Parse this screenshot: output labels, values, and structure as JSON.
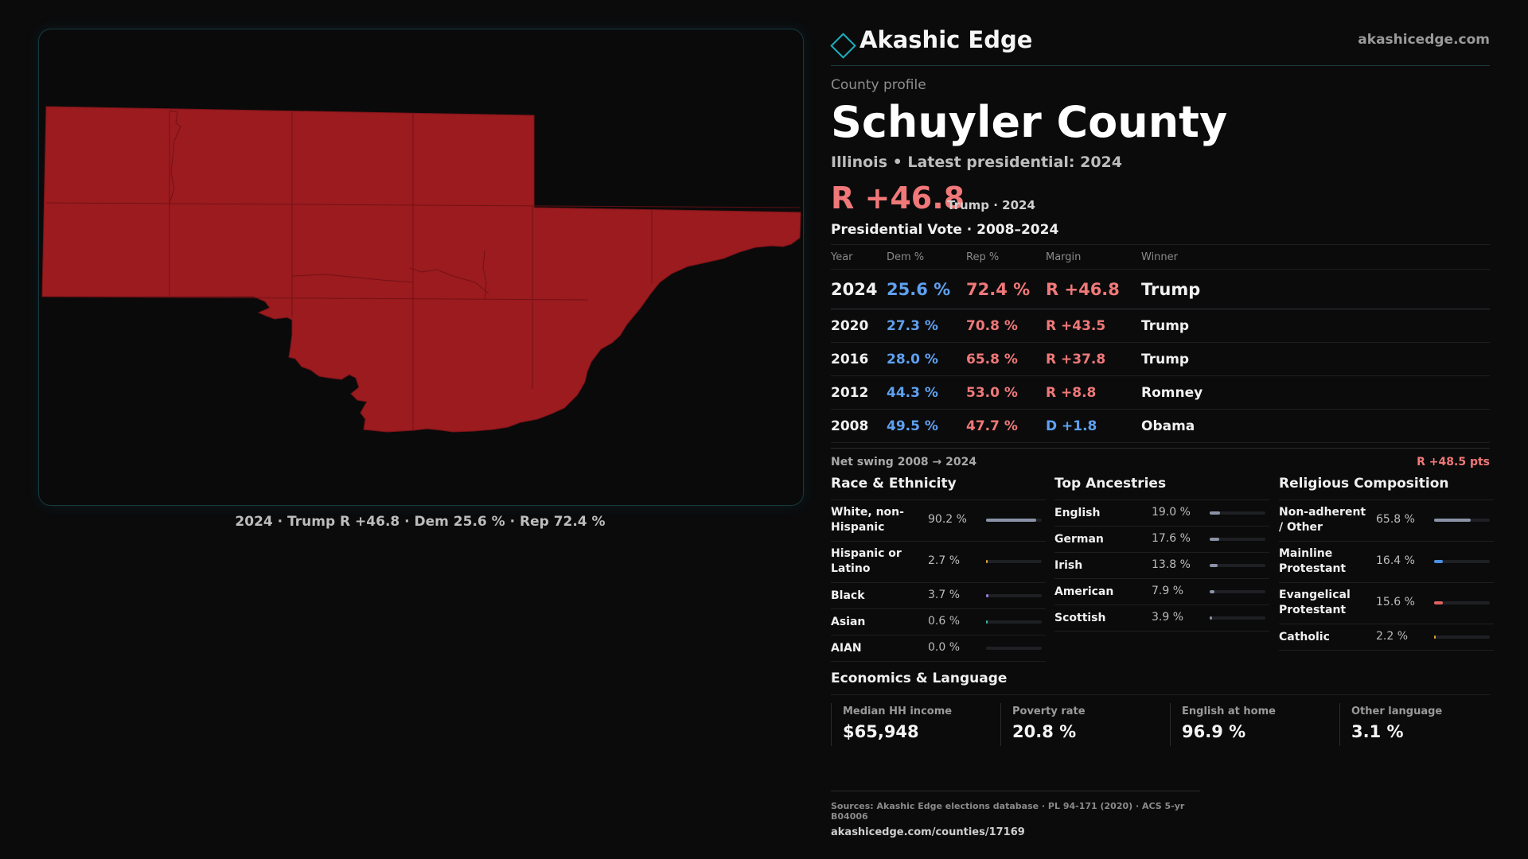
{
  "brand": {
    "name": "Akashic Edge",
    "url": "akashicedge.com"
  },
  "profile": {
    "eyebrow": "County profile",
    "county": "Schuyler County",
    "subtitle": "Illinois • Latest presidential: 2024",
    "headline_margin": "R +46.8",
    "headline_who": "Trump · 2024"
  },
  "map": {
    "caption": "2024 · Trump R +46.8 · Dem 25.6 % · Rep 72.4 %",
    "fill_color": "#9b1b1f",
    "border_color": "#17393f"
  },
  "vote": {
    "title": "Presidential Vote · 2008–2024",
    "columns": [
      "Year",
      "Dem %",
      "Rep %",
      "Margin",
      "Winner"
    ],
    "rows": [
      {
        "year": "2024",
        "dem": "25.6 %",
        "rep": "72.4 %",
        "margin": "R +46.8",
        "winner": "Trump"
      },
      {
        "year": "2020",
        "dem": "27.3 %",
        "rep": "70.8 %",
        "margin": "R +43.5",
        "winner": "Trump"
      },
      {
        "year": "2016",
        "dem": "28.0 %",
        "rep": "65.8 %",
        "margin": "R +37.8",
        "winner": "Trump"
      },
      {
        "year": "2012",
        "dem": "44.3 %",
        "rep": "53.0 %",
        "margin": "R +8.8",
        "winner": "Romney"
      },
      {
        "year": "2008",
        "dem": "49.5 %",
        "rep": "47.7 %",
        "margin": "D +1.8",
        "winner": "Obama"
      }
    ],
    "swing_label": "Net swing 2008 → 2024",
    "swing_value": "R +48.5 pts"
  },
  "race": {
    "title": "Race & Ethnicity",
    "items": [
      {
        "label": "White, non-Hispanic",
        "pct": "90.2 %",
        "value": 90.2,
        "color": "#8a93a6"
      },
      {
        "label": "Hispanic or Latino",
        "pct": "2.7 %",
        "value": 2.7,
        "color": "#e0a23a"
      },
      {
        "label": "Black",
        "pct": "3.7 %",
        "value": 3.7,
        "color": "#9a7ae0"
      },
      {
        "label": "Asian",
        "pct": "0.6 %",
        "value": 0.6,
        "color": "#3ab8a0"
      },
      {
        "label": "AIAN",
        "pct": "0.0 %",
        "value": 0.0,
        "color": "#8a93a6"
      }
    ]
  },
  "ancestry": {
    "title": "Top Ancestries",
    "items": [
      {
        "label": "English",
        "pct": "19.0 %",
        "value": 19.0,
        "color": "#8a93a6"
      },
      {
        "label": "German",
        "pct": "17.6 %",
        "value": 17.6,
        "color": "#8a93a6"
      },
      {
        "label": "Irish",
        "pct": "13.8 %",
        "value": 13.8,
        "color": "#8a93a6"
      },
      {
        "label": "American",
        "pct": "7.9 %",
        "value": 7.9,
        "color": "#8a93a6"
      },
      {
        "label": "Scottish",
        "pct": "3.9 %",
        "value": 3.9,
        "color": "#8a93a6"
      }
    ]
  },
  "religion": {
    "title": "Religious Composition",
    "items": [
      {
        "label": "Non-adherent / Other",
        "pct": "65.8 %",
        "value": 65.8,
        "color": "#8a93a6"
      },
      {
        "label": "Mainline Protestant",
        "pct": "16.4 %",
        "value": 16.4,
        "color": "#4a90e2"
      },
      {
        "label": "Evangelical Protestant",
        "pct": "15.6 %",
        "value": 15.6,
        "color": "#e06060"
      },
      {
        "label": "Catholic",
        "pct": "2.2 %",
        "value": 2.2,
        "color": "#e0a23a"
      }
    ]
  },
  "economics": {
    "title": "Economics & Language",
    "cells": [
      {
        "label": "Median HH income",
        "value": "$65,948"
      },
      {
        "label": "Poverty rate",
        "value": "20.8 %"
      },
      {
        "label": "English at home",
        "value": "96.9 %"
      },
      {
        "label": "Other language",
        "value": "3.1 %"
      }
    ]
  },
  "footer": {
    "sources": "Sources: Akashic Edge elections database · PL 94-171 (2020) · ACS 5-yr B04006",
    "url": "akashicedge.com/counties/17169"
  }
}
